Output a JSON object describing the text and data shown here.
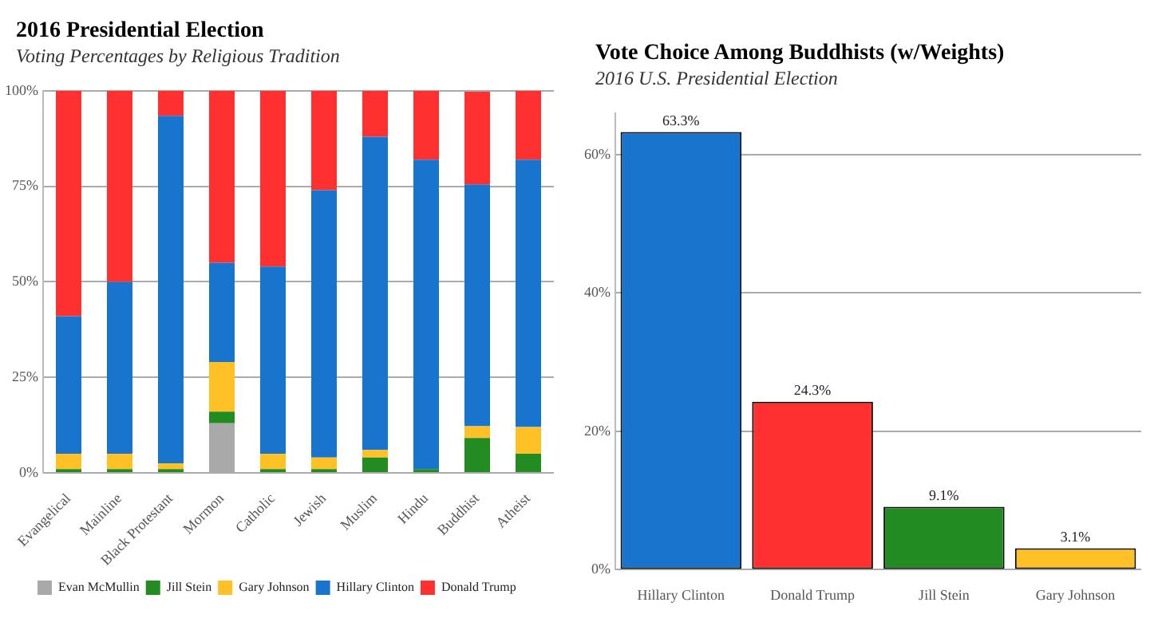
{
  "chart_data": [
    {
      "type": "bar",
      "title": "2016 Presidential Election",
      "subtitle": "Voting Percentages by Religious Tradition",
      "categories": [
        "Evangelical",
        "Mainline",
        "Black Protestant",
        "Mormon",
        "Catholic",
        "Jewish",
        "Muslim",
        "Hindu",
        "Buddhist",
        "Atheist"
      ],
      "stacked": true,
      "ylim": [
        0,
        100
      ],
      "yticks": [
        {
          "value": 0,
          "label": "0%"
        },
        {
          "value": 25,
          "label": "25%"
        },
        {
          "value": 50,
          "label": "50%"
        },
        {
          "value": 75,
          "label": "75%"
        },
        {
          "value": 100,
          "label": "100%"
        }
      ],
      "grid": "y",
      "legend": "bottom",
      "series": [
        {
          "name": "Evan McMullin",
          "color": "#a9a9a9",
          "values": [
            0,
            0,
            0,
            13,
            0,
            0,
            0,
            0,
            0,
            0
          ]
        },
        {
          "name": "Jill Stein",
          "color": "#228b22",
          "values": [
            1,
            1,
            1,
            3,
            1,
            1,
            4,
            1,
            9.1,
            5
          ]
        },
        {
          "name": "Gary Johnson",
          "color": "#ffc125",
          "values": [
            4,
            4,
            1.5,
            13,
            4,
            3,
            2,
            0,
            3.1,
            7
          ]
        },
        {
          "name": "Hillary Clinton",
          "color": "#1874cd",
          "values": [
            36,
            45,
            91,
            26,
            49,
            70,
            82,
            81,
            63.3,
            70
          ]
        },
        {
          "name": "Donald Trump",
          "color": "#ff3030",
          "values": [
            59,
            50,
            6.5,
            45,
            46,
            26,
            12,
            18,
            24.3,
            18
          ]
        }
      ]
    },
    {
      "type": "bar",
      "title": "Vote Choice Among Buddhists (w/Weights)",
      "subtitle": "2016 U.S. Presidential Election",
      "categories": [
        "Hillary Clinton",
        "Donald Trump",
        "Jill Stein",
        "Gary Johnson"
      ],
      "values": [
        63.3,
        24.3,
        9.1,
        3.1
      ],
      "colors": [
        "#1874cd",
        "#ff3030",
        "#228b22",
        "#ffc125"
      ],
      "value_labels": [
        "63.3%",
        "24.3%",
        "9.1%",
        "3.1%"
      ],
      "ylim": [
        0,
        66
      ],
      "yticks": [
        {
          "value": 0,
          "label": "0%"
        },
        {
          "value": 20,
          "label": "20%"
        },
        {
          "value": 40,
          "label": "40%"
        },
        {
          "value": 60,
          "label": "60%"
        }
      ],
      "grid": "y"
    }
  ]
}
